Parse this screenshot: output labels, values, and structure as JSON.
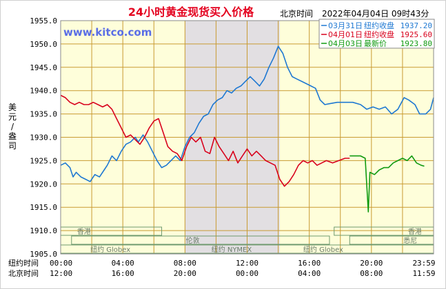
{
  "chart_data": {
    "type": "line",
    "title": "24小时黄金现货买入价格",
    "clock_label": "北京时间",
    "timestamp": "2022年04月04日 09时43分",
    "watermark": "www.kitco.com",
    "ylabel": "美元/盎司",
    "ylim": [
      1905,
      1955
    ],
    "yticks": [
      "1955.0",
      "1950.0",
      "1945.0",
      "1940.0",
      "1935.0",
      "1930.0",
      "1925.0",
      "1920.0",
      "1915.0",
      "1910.0",
      "1905.0"
    ],
    "xlim": [
      0,
      24
    ],
    "x_rows": [
      {
        "label": "纽约时间",
        "ticks": [
          "00:00",
          "04:00",
          "08:00",
          "12:00",
          "16:00",
          "20:00",
          "23:59"
        ]
      },
      {
        "label": "北京时间",
        "ticks": [
          "12:00",
          "16:00",
          "20:00",
          "00:00",
          "04:00",
          "08:00",
          "11:59"
        ]
      }
    ],
    "shaded_span": [
      8.0,
      14.1
    ],
    "markets": {
      "hongkong": "香港",
      "london": "伦敦",
      "globex": "纽约 Globex",
      "nymex": "纽约 NYMEX",
      "sydney": "悉尼"
    },
    "legend": [
      {
        "date": "03月31日",
        "desc": "纽约收盘",
        "value": "1937.20",
        "color": "#1e78d2"
      },
      {
        "date": "04月01日",
        "desc": "纽约收盘",
        "value": "1925.60",
        "color": "#d8001c"
      },
      {
        "date": "04月03日",
        "desc": "最新价",
        "value": "1923.80",
        "color": "#109a10"
      }
    ],
    "series": [
      {
        "color": "#1e78d2",
        "points": [
          [
            0,
            1924
          ],
          [
            0.3,
            1924.5
          ],
          [
            0.6,
            1923.5
          ],
          [
            0.8,
            1921.5
          ],
          [
            1.0,
            1922.5
          ],
          [
            1.3,
            1921.5
          ],
          [
            1.6,
            1921
          ],
          [
            1.9,
            1920.5
          ],
          [
            2.2,
            1922
          ],
          [
            2.5,
            1921.5
          ],
          [
            2.8,
            1923
          ],
          [
            3.0,
            1924
          ],
          [
            3.3,
            1926
          ],
          [
            3.6,
            1925
          ],
          [
            3.9,
            1927
          ],
          [
            4.2,
            1928.5
          ],
          [
            4.5,
            1929
          ],
          [
            4.8,
            1930
          ],
          [
            5.0,
            1929
          ],
          [
            5.3,
            1930.5
          ],
          [
            5.6,
            1929
          ],
          [
            5.9,
            1927
          ],
          [
            6.2,
            1925
          ],
          [
            6.5,
            1923.5
          ],
          [
            6.8,
            1924
          ],
          [
            7.1,
            1925
          ],
          [
            7.4,
            1926
          ],
          [
            7.7,
            1925
          ],
          [
            8.0,
            1928
          ],
          [
            8.3,
            1930
          ],
          [
            8.6,
            1931
          ],
          [
            8.9,
            1933
          ],
          [
            9.2,
            1934.5
          ],
          [
            9.5,
            1935
          ],
          [
            9.8,
            1937
          ],
          [
            10.1,
            1938
          ],
          [
            10.4,
            1938.5
          ],
          [
            10.7,
            1940
          ],
          [
            11.0,
            1939.5
          ],
          [
            11.3,
            1940.5
          ],
          [
            11.6,
            1941
          ],
          [
            11.9,
            1942
          ],
          [
            12.2,
            1943
          ],
          [
            12.5,
            1942
          ],
          [
            12.8,
            1941
          ],
          [
            13.1,
            1942.5
          ],
          [
            13.4,
            1945
          ],
          [
            13.7,
            1947
          ],
          [
            14.0,
            1949.5
          ],
          [
            14.3,
            1948
          ],
          [
            14.6,
            1945
          ],
          [
            14.9,
            1943
          ],
          [
            15.2,
            1942.5
          ],
          [
            15.5,
            1942
          ],
          [
            15.8,
            1941.5
          ],
          [
            16.1,
            1941
          ],
          [
            16.4,
            1940.5
          ],
          [
            16.7,
            1938
          ],
          [
            17.0,
            1937
          ],
          [
            17.3,
            1937.2
          ],
          [
            17.8,
            1937.5
          ],
          [
            18.3,
            1937.5
          ],
          [
            18.8,
            1937.5
          ],
          [
            19.3,
            1937
          ],
          [
            19.7,
            1936
          ],
          [
            20.1,
            1936.5
          ],
          [
            20.5,
            1936
          ],
          [
            20.9,
            1936.5
          ],
          [
            21.3,
            1935
          ],
          [
            21.7,
            1936
          ],
          [
            22.1,
            1938.5
          ],
          [
            22.4,
            1938
          ],
          [
            22.8,
            1937
          ],
          [
            23.1,
            1935
          ],
          [
            23.5,
            1935
          ],
          [
            23.8,
            1936
          ],
          [
            24.0,
            1938.5
          ]
        ]
      },
      {
        "color": "#d8001c",
        "points": [
          [
            0,
            1939
          ],
          [
            0.3,
            1938.5
          ],
          [
            0.6,
            1937.5
          ],
          [
            0.9,
            1937
          ],
          [
            1.2,
            1937.5
          ],
          [
            1.5,
            1937
          ],
          [
            1.8,
            1937
          ],
          [
            2.1,
            1937.5
          ],
          [
            2.4,
            1937
          ],
          [
            2.7,
            1936.5
          ],
          [
            3.0,
            1937
          ],
          [
            3.3,
            1936
          ],
          [
            3.6,
            1934
          ],
          [
            3.9,
            1932
          ],
          [
            4.2,
            1930
          ],
          [
            4.5,
            1930.5
          ],
          [
            4.8,
            1929.5
          ],
          [
            5.1,
            1928.5
          ],
          [
            5.4,
            1930
          ],
          [
            5.7,
            1932
          ],
          [
            6.0,
            1933.5
          ],
          [
            6.3,
            1934
          ],
          [
            6.6,
            1931
          ],
          [
            6.9,
            1928
          ],
          [
            7.2,
            1927
          ],
          [
            7.5,
            1926.5
          ],
          [
            7.8,
            1925
          ],
          [
            8.1,
            1928
          ],
          [
            8.4,
            1930
          ],
          [
            8.7,
            1929
          ],
          [
            9.0,
            1930
          ],
          [
            9.3,
            1927
          ],
          [
            9.6,
            1926.5
          ],
          [
            9.9,
            1930
          ],
          [
            10.2,
            1928
          ],
          [
            10.5,
            1926.5
          ],
          [
            10.8,
            1925
          ],
          [
            11.1,
            1927
          ],
          [
            11.4,
            1924.5
          ],
          [
            11.7,
            1926
          ],
          [
            12.0,
            1927.5
          ],
          [
            12.3,
            1926
          ],
          [
            12.6,
            1927
          ],
          [
            12.9,
            1926
          ],
          [
            13.2,
            1925
          ],
          [
            13.5,
            1924.5
          ],
          [
            13.8,
            1924
          ],
          [
            14.1,
            1921
          ],
          [
            14.4,
            1919.5
          ],
          [
            14.7,
            1920.5
          ],
          [
            15.0,
            1922
          ],
          [
            15.3,
            1924
          ],
          [
            15.6,
            1925
          ],
          [
            15.9,
            1924.5
          ],
          [
            16.2,
            1925
          ],
          [
            16.5,
            1924
          ],
          [
            16.8,
            1924.5
          ],
          [
            17.1,
            1925
          ],
          [
            17.5,
            1924.5
          ],
          [
            17.9,
            1925
          ],
          [
            18.3,
            1925.5
          ],
          [
            18.6,
            1925.5
          ]
        ]
      },
      {
        "color": "#109a10",
        "points": [
          [
            18.6,
            1926
          ],
          [
            19.3,
            1926
          ],
          [
            19.6,
            1925.5
          ],
          [
            19.8,
            1914
          ],
          [
            19.9,
            1922.5
          ],
          [
            20.2,
            1922
          ],
          [
            20.5,
            1923
          ],
          [
            20.8,
            1923.5
          ],
          [
            21.1,
            1923.5
          ],
          [
            21.4,
            1924.5
          ],
          [
            21.7,
            1925
          ],
          [
            22.0,
            1925.5
          ],
          [
            22.3,
            1925
          ],
          [
            22.6,
            1926
          ],
          [
            22.9,
            1924.5
          ],
          [
            23.2,
            1924
          ],
          [
            23.4,
            1923.8
          ]
        ]
      }
    ]
  }
}
